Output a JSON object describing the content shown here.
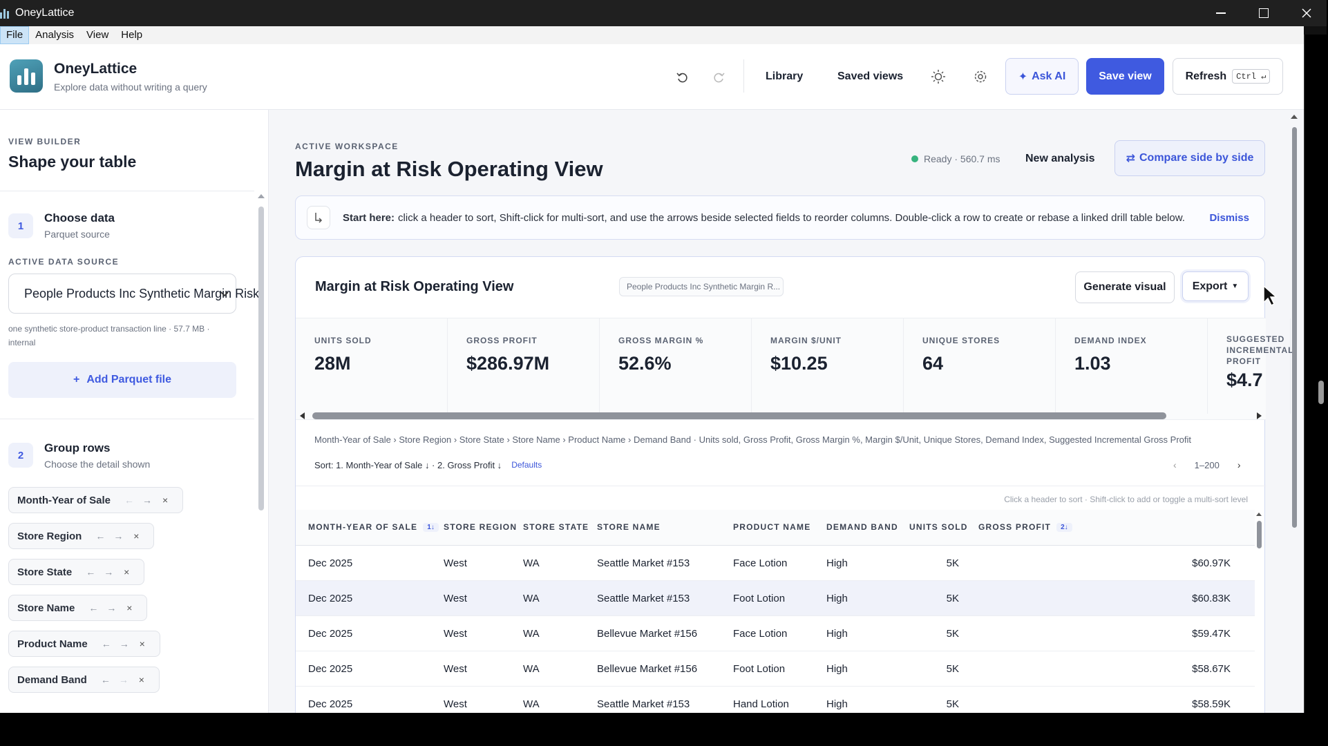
{
  "window": {
    "title": "OneyLattice"
  },
  "menu": {
    "items": [
      "File",
      "Analysis",
      "View",
      "Help"
    ],
    "active": "File"
  },
  "header": {
    "brand": "OneyLattice",
    "tagline": "Explore data without writing a query",
    "links": [
      "Library",
      "Saved views"
    ],
    "ask_ai": "Ask AI",
    "save_view": "Save view",
    "refresh": "Refresh",
    "refresh_shortcut": "Ctrl ↵"
  },
  "sidebar": {
    "eyebrow": "VIEW BUILDER",
    "title": "Shape your table",
    "step1": {
      "num": "1",
      "title": "Choose data",
      "sub": "Parquet source"
    },
    "data_source_label": "ACTIVE DATA SOURCE",
    "data_source_value": "People Products Inc Synthetic Margin Risk",
    "data_source_desc": "one synthetic store-product transaction line · 57.7 MB · internal",
    "add_parquet": "Add Parquet file",
    "step2": {
      "num": "2",
      "title": "Group rows",
      "sub": "Choose the detail shown"
    },
    "group_fields": [
      "Month-Year of Sale",
      "Store Region",
      "Store State",
      "Store Name",
      "Product Name",
      "Demand Band"
    ],
    "arrow_left": "←",
    "arrow_right": "→",
    "remove": "×"
  },
  "workspace": {
    "eyebrow": "ACTIVE WORKSPACE",
    "title": "Margin at Risk Operating View",
    "status": "Ready · 560.7 ms",
    "new_analysis": "New analysis",
    "compare": "Compare side by side",
    "tip_lead": "Start here:",
    "tip_text": "click a header to sort, Shift-click for multi-sort, and use the arrows beside selected fields to reorder columns. Double-click a row to create or rebase a linked drill table below.",
    "dismiss": "Dismiss"
  },
  "card": {
    "title": "Margin at Risk Operating View",
    "source_pill": "People Products Inc Synthetic Margin R...",
    "generate_visual": "Generate visual",
    "export": "Export",
    "kpis": [
      {
        "label": "UNITS SOLD",
        "value": "28M"
      },
      {
        "label": "GROSS PROFIT",
        "value": "$286.97M"
      },
      {
        "label": "GROSS MARGIN %",
        "value": "52.6%"
      },
      {
        "label": "MARGIN $/UNIT",
        "value": "$10.25"
      },
      {
        "label": "UNIQUE STORES",
        "value": "64"
      },
      {
        "label": "DEMAND INDEX",
        "value": "1.03"
      },
      {
        "label": "SUGGESTED INCREMENTAL PROFIT",
        "value": "$4.7"
      }
    ],
    "path": "Month-Year of Sale › Store Region › Store State › Store Name › Product Name › Demand Band · Units sold, Gross Profit, Gross Margin %, Margin $/Unit, Unique Stores, Demand Index, Suggested Incremental Gross Profit",
    "sort": "Sort: 1. Month-Year of Sale ↓ · 2. Gross Profit ↓",
    "defaults": "Defaults",
    "page_range": "1–200",
    "hint": "Click a header to sort · Shift-click to add or toggle a multi-sort level"
  },
  "table": {
    "columns": [
      {
        "label": "MONTH-YEAR OF SALE",
        "sort": "1↓"
      },
      {
        "label": "STORE REGION",
        "sort": ""
      },
      {
        "label": "STORE STATE",
        "sort": ""
      },
      {
        "label": "STORE NAME",
        "sort": ""
      },
      {
        "label": "PRODUCT NAME",
        "sort": ""
      },
      {
        "label": "DEMAND BAND",
        "sort": ""
      },
      {
        "label": "UNITS SOLD",
        "sort": ""
      },
      {
        "label": "GROSS PROFIT",
        "sort": "2↓"
      }
    ],
    "rows": [
      [
        "Dec 2025",
        "West",
        "WA",
        "Seattle Market #153",
        "Face Lotion",
        "High",
        "5K",
        "$60.97K"
      ],
      [
        "Dec 2025",
        "West",
        "WA",
        "Seattle Market #153",
        "Foot Lotion",
        "High",
        "5K",
        "$60.83K"
      ],
      [
        "Dec 2025",
        "West",
        "WA",
        "Bellevue Market #156",
        "Face Lotion",
        "High",
        "5K",
        "$59.47K"
      ],
      [
        "Dec 2025",
        "West",
        "WA",
        "Bellevue Market #156",
        "Foot Lotion",
        "High",
        "5K",
        "$58.67K"
      ],
      [
        "Dec 2025",
        "West",
        "WA",
        "Seattle Market #153",
        "Hand Lotion",
        "High",
        "5K",
        "$58.59K"
      ]
    ],
    "selected_row": 1
  },
  "colors": {
    "accent": "#3f5ae0",
    "status_ready": "#36b37e",
    "selected_row": "#f0f2fa"
  }
}
